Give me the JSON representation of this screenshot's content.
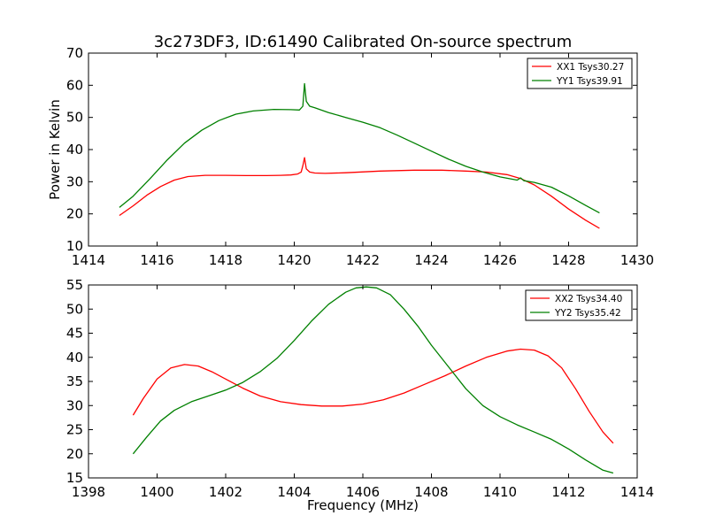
{
  "figure": {
    "title": "3c273DF3, ID:61490 Calibrated On-source spectrum"
  },
  "chart_data": [
    {
      "type": "line",
      "title": "3c273DF3, ID:61490 Calibrated On-source spectrum",
      "xlabel": "",
      "ylabel": "Power in Kelvin",
      "xlim": [
        1414,
        1430
      ],
      "ylim": [
        10,
        70
      ],
      "xticks": [
        1414,
        1416,
        1418,
        1420,
        1422,
        1424,
        1426,
        1428,
        1430
      ],
      "yticks": [
        10,
        20,
        30,
        40,
        50,
        60,
        70
      ],
      "grid": false,
      "legend": "top-right",
      "series": [
        {
          "name": "XX1 Tsys30.27",
          "color": "#ff0000",
          "x": [
            1414.9,
            1415.3,
            1415.7,
            1416.1,
            1416.5,
            1416.9,
            1417.4,
            1418,
            1418.6,
            1419.2,
            1419.6,
            1419.9,
            1420.1,
            1420.2,
            1420.25,
            1420.3,
            1420.35,
            1420.45,
            1420.6,
            1420.9,
            1421.5,
            1422.5,
            1423.5,
            1424.3,
            1425,
            1425.6,
            1426.2,
            1426.6,
            1427,
            1427.5,
            1428,
            1428.5,
            1428.9
          ],
          "values": [
            19.5,
            22.5,
            25.8,
            28.5,
            30.5,
            31.6,
            32,
            32,
            31.9,
            31.9,
            32,
            32.1,
            32.4,
            33,
            35,
            37.5,
            34,
            33,
            32.7,
            32.6,
            32.8,
            33.3,
            33.6,
            33.6,
            33.3,
            33,
            32.2,
            31,
            29,
            25.5,
            21.5,
            18,
            15.5
          ]
        },
        {
          "name": "YY1 Tsys39.91",
          "color": "#008000",
          "x": [
            1414.9,
            1415.3,
            1415.8,
            1416.3,
            1416.8,
            1417.3,
            1417.8,
            1418.3,
            1418.8,
            1419.4,
            1419.9,
            1420.15,
            1420.25,
            1420.3,
            1420.35,
            1420.45,
            1420.6,
            1421,
            1421.5,
            1422,
            1422.5,
            1423,
            1423.5,
            1424,
            1424.5,
            1425,
            1425.5,
            1426,
            1426.5,
            1426.6,
            1426.7,
            1427,
            1427.5,
            1428,
            1428.5,
            1428.9
          ],
          "values": [
            22,
            25.5,
            31,
            36.8,
            42,
            46,
            49,
            51,
            52,
            52.5,
            52.4,
            52.3,
            53.5,
            60.5,
            55,
            53.5,
            53,
            51.5,
            50,
            48.5,
            46.8,
            44.5,
            42,
            39.5,
            37,
            34.8,
            33,
            31.5,
            30.5,
            31.2,
            30.3,
            29.8,
            28.3,
            25.6,
            22.6,
            20.3
          ]
        }
      ]
    },
    {
      "type": "line",
      "title": "",
      "xlabel": "Frequency (MHz)",
      "ylabel": "",
      "xlim": [
        1398,
        1414
      ],
      "ylim": [
        15,
        55
      ],
      "xticks": [
        1398,
        1400,
        1402,
        1404,
        1406,
        1408,
        1410,
        1412,
        1414
      ],
      "yticks": [
        15,
        20,
        25,
        30,
        35,
        40,
        45,
        50,
        55
      ],
      "grid": false,
      "legend": "top-right",
      "series": [
        {
          "name": "XX2 Tsys34.40",
          "color": "#ff0000",
          "x": [
            1399.3,
            1399.6,
            1400,
            1400.4,
            1400.8,
            1401.2,
            1401.6,
            1402,
            1402.5,
            1403,
            1403.6,
            1404.2,
            1404.8,
            1405.4,
            1406,
            1406.6,
            1407.2,
            1407.8,
            1408.4,
            1409,
            1409.6,
            1410.2,
            1410.6,
            1411,
            1411.4,
            1411.8,
            1412.2,
            1412.6,
            1413,
            1413.3
          ],
          "values": [
            28,
            31.5,
            35.5,
            37.8,
            38.5,
            38.2,
            37,
            35.5,
            33.6,
            32,
            30.8,
            30.2,
            29.9,
            29.9,
            30.3,
            31.2,
            32.6,
            34.4,
            36.2,
            38.2,
            40,
            41.3,
            41.7,
            41.5,
            40.3,
            37.8,
            33.5,
            28.8,
            24.5,
            22.2
          ]
        },
        {
          "name": "YY2 Tsys35.42",
          "color": "#008000",
          "x": [
            1399.3,
            1399.7,
            1400.1,
            1400.5,
            1401,
            1401.5,
            1402,
            1402.5,
            1403,
            1403.5,
            1404,
            1404.5,
            1405,
            1405.5,
            1405.8,
            1406.1,
            1406.4,
            1406.8,
            1407.2,
            1407.6,
            1408,
            1408.5,
            1409,
            1409.5,
            1410,
            1410.5,
            1411,
            1411.5,
            1412,
            1412.5,
            1413,
            1413.3
          ],
          "values": [
            20,
            23.5,
            26.8,
            29,
            30.8,
            32,
            33.2,
            34.8,
            37,
            39.8,
            43.5,
            47.5,
            51,
            53.5,
            54.4,
            54.6,
            54.4,
            53,
            50,
            46.5,
            42.5,
            38,
            33.5,
            30,
            27.7,
            26,
            24.5,
            23,
            21,
            18.7,
            16.6,
            16
          ]
        }
      ]
    }
  ]
}
